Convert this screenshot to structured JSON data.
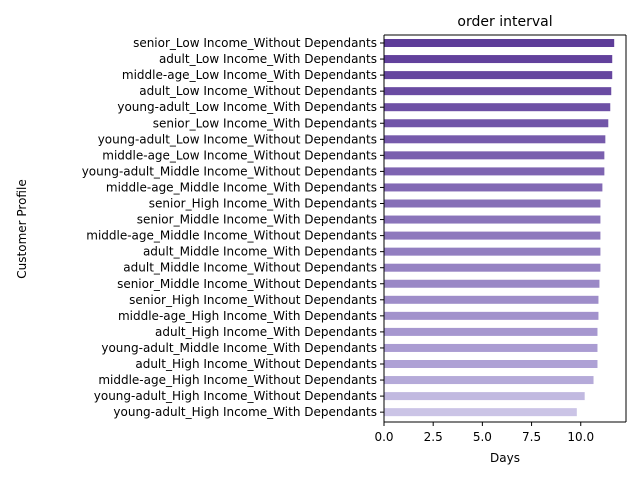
{
  "chart_data": {
    "type": "bar",
    "orientation": "horizontal",
    "title": "order interval",
    "xlabel": "Days",
    "ylabel": "Customer Profile",
    "xlim": [
      0,
      12.3
    ],
    "xticks": [
      "0.0",
      "2.5",
      "5.0",
      "7.5",
      "10.0"
    ],
    "xtick_values": [
      0,
      2.5,
      5,
      7.5,
      10
    ],
    "grid": false,
    "legend": "none",
    "categories": [
      "senior_Low Income_Without Dependants",
      "adult_Low Income_With Dependants",
      "middle-age_Low Income_With Dependants",
      "adult_Low Income_Without Dependants",
      "young-adult_Low Income_With Dependants",
      "senior_Low Income_With Dependants",
      "young-adult_Low Income_Without Dependants",
      "middle-age_Low Income_Without Dependants",
      "young-adult_Middle Income_Without Dependants",
      "middle-age_Middle Income_With Dependants",
      "senior_High Income_With Dependants",
      "senior_Middle Income_With Dependants",
      "middle-age_Middle Income_Without Dependants",
      "adult_Middle Income_With Dependants",
      "adult_Middle Income_Without Dependants",
      "senior_Middle Income_Without Dependants",
      "senior_High Income_Without Dependants",
      "middle-age_High Income_With Dependants",
      "adult_High Income_With Dependants",
      "young-adult_Middle Income_With Dependants",
      "adult_High Income_Without Dependants",
      "middle-age_High Income_Without Dependants",
      "young-adult_High Income_Without Dependants",
      "young-adult_High Income_With Dependants"
    ],
    "values": [
      11.7,
      11.6,
      11.6,
      11.55,
      11.5,
      11.4,
      11.25,
      11.2,
      11.2,
      11.1,
      11.0,
      11.0,
      11.0,
      11.0,
      11.0,
      10.95,
      10.9,
      10.9,
      10.85,
      10.85,
      10.85,
      10.65,
      10.2,
      9.8
    ],
    "colors": [
      "#5e3c99",
      "#62419c",
      "#66469f",
      "#6a4ba2",
      "#6e50a5",
      "#7255a8",
      "#765aab",
      "#7a5fae",
      "#7e64b1",
      "#8269b4",
      "#866fb7",
      "#8a74ba",
      "#8e79bd",
      "#927ec0",
      "#9683c3",
      "#9a88c6",
      "#9e8dc9",
      "#a292cc",
      "#a697cf",
      "#aa9cd2",
      "#aea1d5",
      "#b5aad9",
      "#c1b9e0",
      "#cbc4e6"
    ]
  }
}
